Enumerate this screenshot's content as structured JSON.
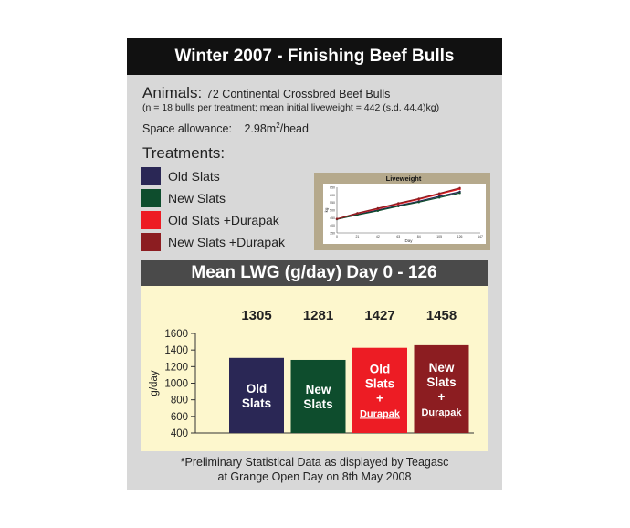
{
  "header": {
    "title": "Winter 2007 - Finishing Beef Bulls"
  },
  "animals": {
    "label": "Animals:",
    "value": "72 Continental Crossbred Beef Bulls",
    "note": "(n = 18 bulls per treatment; mean initial liveweight = 442 (s.d. 44.4)kg)"
  },
  "space": {
    "label": "Space allowance:",
    "value_num": "2.98m",
    "value_sup": "2",
    "value_unit": "/head"
  },
  "treatments": {
    "heading": "Treatments:",
    "items": [
      {
        "label": "Old Slats",
        "color": "#2a2755"
      },
      {
        "label": "New Slats",
        "color": "#0e4d2d"
      },
      {
        "label": "Old Slats +Durapak",
        "color": "#ed1c24"
      },
      {
        "label": "New Slats +Durapak",
        "color": "#8c1d21"
      }
    ]
  },
  "chart_data": [
    {
      "type": "bar",
      "title": "Mean LWG (g/day) Day 0 - 126",
      "ylabel": "g/day",
      "ylim": [
        400,
        1600
      ],
      "yticks": [
        400,
        600,
        800,
        1000,
        1200,
        1400,
        1600
      ],
      "categories": [
        "Old Slats",
        "New Slats",
        "Old Slats + Durapak",
        "New Slats + Durapak"
      ],
      "bar_labels": [
        [
          "Old",
          "Slats"
        ],
        [
          "New",
          "Slats"
        ],
        [
          "Old",
          "Slats",
          "+",
          "Durapak"
        ],
        [
          "New",
          "Slats",
          "+",
          "Durapak"
        ]
      ],
      "values": [
        1305,
        1281,
        1427,
        1458
      ],
      "value_labels": [
        "1305",
        "1281",
        "1427",
        "1458"
      ],
      "colors": [
        "#2a2755",
        "#0e4d2d",
        "#ed1c24",
        "#8c1d21"
      ],
      "grid": false
    },
    {
      "type": "line",
      "title": "Liveweight",
      "ylabel": "kg",
      "xlabel": "Day",
      "x_ticks": [
        0,
        21,
        42,
        63,
        84,
        105,
        126,
        147
      ],
      "y_ticks": [
        350,
        400,
        450,
        500,
        550,
        600,
        650
      ],
      "xlim": [
        0,
        147
      ],
      "ylim": [
        350,
        650
      ],
      "x": [
        0,
        21,
        42,
        63,
        84,
        105,
        126
      ],
      "series": [
        {
          "values": [
            440,
            472,
            500,
            530,
            558,
            590,
            620
          ],
          "color": "#2a2755"
        },
        {
          "values": [
            440,
            468,
            495,
            525,
            552,
            582,
            612
          ],
          "color": "#0e4d2d"
        },
        {
          "values": [
            442,
            478,
            508,
            540,
            570,
            605,
            638
          ],
          "color": "#ed1c24"
        },
        {
          "values": [
            442,
            480,
            512,
            545,
            575,
            610,
            645
          ],
          "color": "#8c1d21"
        }
      ]
    }
  ],
  "footnote": {
    "line1": "*Preliminary Statistical Data as displayed by Teagasc",
    "line2": "at Grange Open Day on 8th May 2008"
  }
}
